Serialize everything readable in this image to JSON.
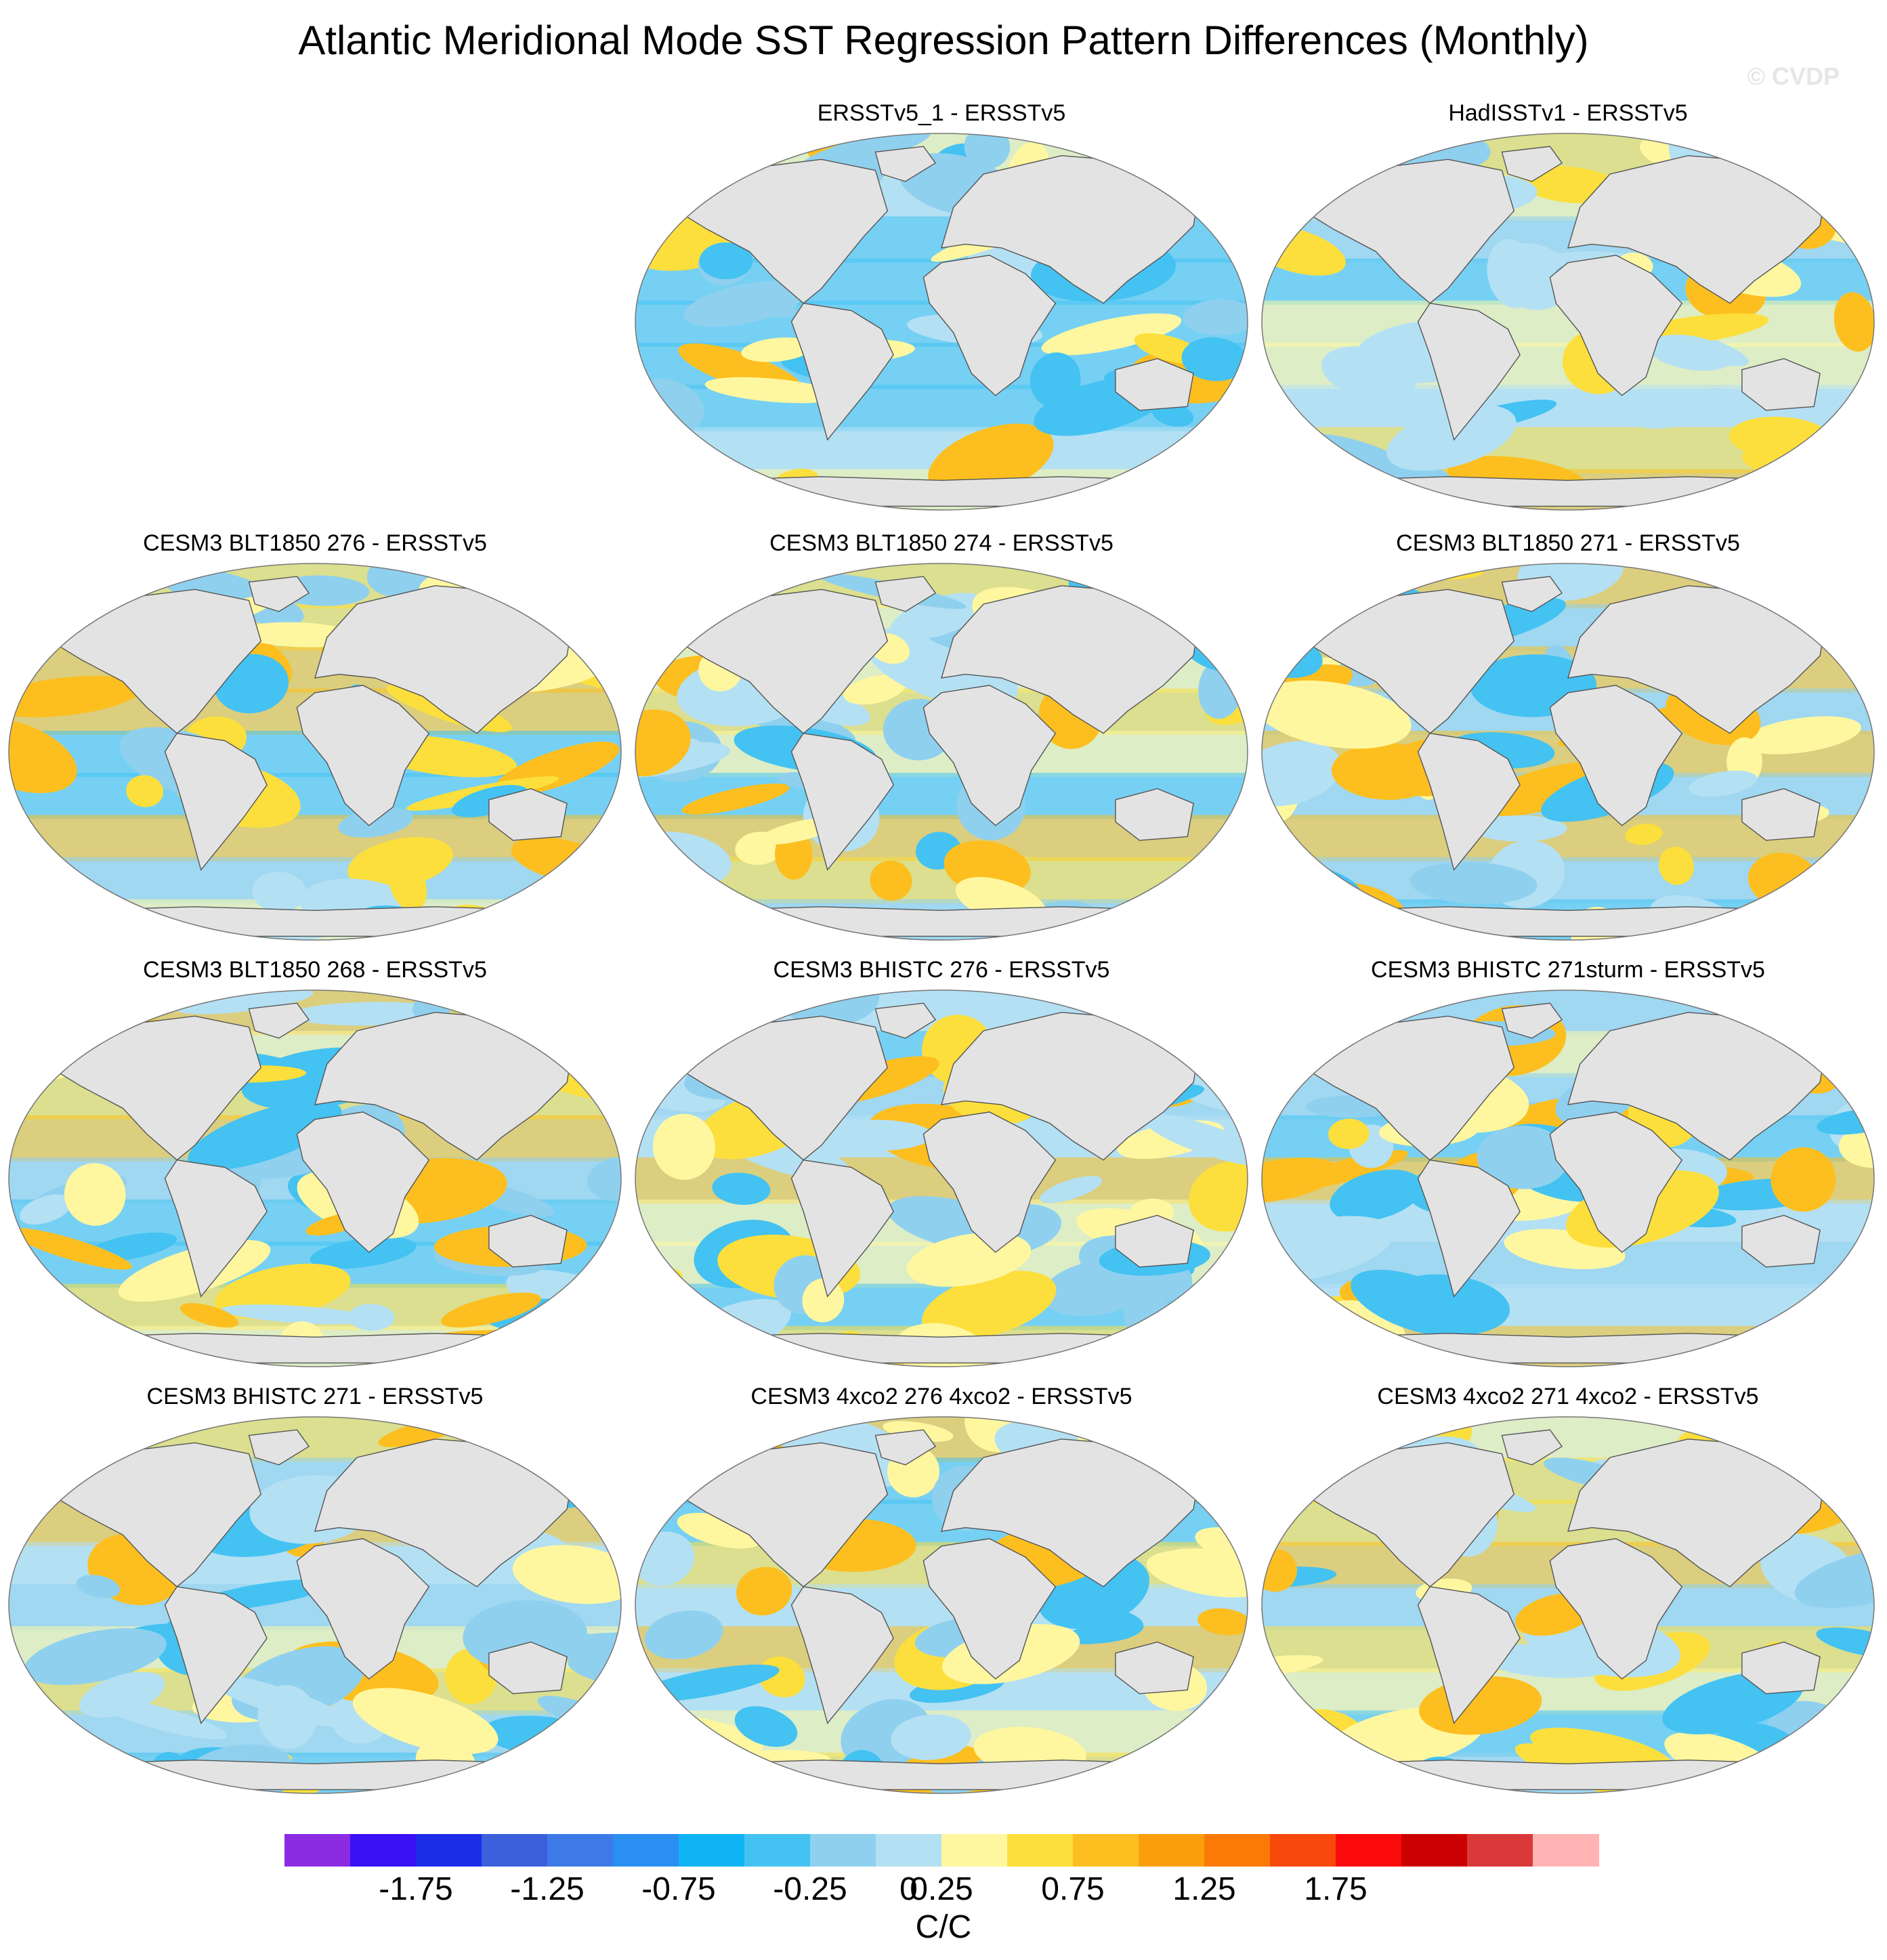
{
  "title": "Atlantic Meridional Mode SST Regression Pattern Differences (Monthly)",
  "watermark": "© CVDP",
  "chart_data": {
    "type": "heatmap",
    "projection": "global map (Robinson-like), filled contour maps of SST regression differences",
    "panels": [
      {
        "title": "ERSSTv5_1 - ERSSTv5",
        "row": 0,
        "col": 1
      },
      {
        "title": "HadISSTv1 - ERSSTv5",
        "row": 0,
        "col": 2
      },
      {
        "title": "CESM3 BLT1850 276 - ERSSTv5",
        "row": 1,
        "col": 0
      },
      {
        "title": "CESM3 BLT1850 274 - ERSSTv5",
        "row": 1,
        "col": 1
      },
      {
        "title": "CESM3 BLT1850 271 - ERSSTv5",
        "row": 1,
        "col": 2
      },
      {
        "title": "CESM3 BLT1850 268 - ERSSTv5",
        "row": 2,
        "col": 0
      },
      {
        "title": "CESM3 BHISTC 276 - ERSSTv5",
        "row": 2,
        "col": 1
      },
      {
        "title": "CESM3 BHISTC 271sturm - ERSSTv5",
        "row": 2,
        "col": 2
      },
      {
        "title": "CESM3 BHISTC 271 - ERSSTv5",
        "row": 3,
        "col": 0
      },
      {
        "title": "CESM3 4xco2 276 4xco2 - ERSSTv5",
        "row": 3,
        "col": 1
      },
      {
        "title": "CESM3 4xco2 271 4xco2 - ERSSTv5",
        "row": 3,
        "col": 2
      }
    ],
    "colorbar": {
      "levels": [
        -2.0,
        -1.75,
        -1.5,
        -1.25,
        -1.0,
        -0.75,
        -0.5,
        -0.25,
        0,
        0.25,
        0.5,
        0.75,
        1.0,
        1.25,
        1.5,
        1.75,
        2.0
      ],
      "colors": [
        "#8b2be2",
        "#3a10f5",
        "#1c2de8",
        "#3c5fdc",
        "#3d7ae8",
        "#2a8ef2",
        "#0fb4f5",
        "#44c2f2",
        "#8fd0ef",
        "#b4e0f4",
        "#fff7a0",
        "#fcdf3c",
        "#fcbf1f",
        "#fb9e0c",
        "#fb7a06",
        "#f8480c",
        "#fa0a0a",
        "#cc0000",
        "#d93939",
        "#ffb3b3"
      ],
      "tick_labels": [
        "-1.75",
        "-1.25",
        "-0.75",
        "-0.25",
        "0",
        "0.25",
        "0.75",
        "1.25",
        "1.75"
      ],
      "units": "C/C"
    }
  }
}
